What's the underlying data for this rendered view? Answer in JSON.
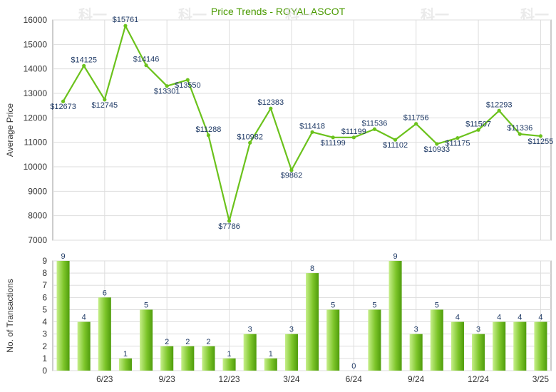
{
  "colors": {
    "title": "#4a9a00",
    "line": "#6bc21c",
    "bar_light": "#c6ef8a",
    "bar_dark": "#4f9c0c",
    "grid": "#dddddd",
    "axis": "#999999"
  },
  "watermark": "科一",
  "chart_data": [
    {
      "type": "line",
      "title": "Price Trends - ROYAL ASCOT",
      "ylabel": "Average Price",
      "ylim": [
        7000,
        16000
      ],
      "yticks": [
        "7000",
        "8000",
        "9000",
        "10000",
        "11000",
        "12000",
        "13000",
        "14000",
        "15000",
        "16000"
      ],
      "grid": true,
      "x": [
        "4/23",
        "5/23",
        "6/23",
        "7/23",
        "8/23",
        "9/23",
        "10/23",
        "11/23",
        "12/23",
        "1/24",
        "2/24",
        "3/24",
        "4/24",
        "5/24",
        "6/24",
        "7/24",
        "8/24",
        "9/24",
        "10/24",
        "11/24",
        "12/24",
        "1/25",
        "2/25",
        "3/25"
      ],
      "values": [
        12673,
        14125,
        12745,
        15761,
        14146,
        13301,
        13550,
        11288,
        7786,
        10982,
        12383,
        9862,
        11418,
        11199,
        11199,
        11536,
        11102,
        11756,
        10933,
        11175,
        11507,
        12293,
        11336,
        11255
      ],
      "labels": [
        "$12673",
        "$14125",
        "$12745",
        "$15761",
        "$14146",
        "$13301",
        "$13550",
        "$11288",
        "$7786",
        "$10982",
        "$12383",
        "$9862",
        "$11418",
        "$11199",
        "$11199",
        "$11536",
        "$11102",
        "$11756",
        "$10933",
        "$11175",
        "$11507",
        "$12293",
        "$11336",
        "$11255"
      ],
      "xtick_labels": [
        "6/23",
        "9/23",
        "12/23",
        "3/24",
        "6/24",
        "9/24",
        "12/24",
        "3/25"
      ]
    },
    {
      "type": "bar",
      "ylabel": "No. of Transactions",
      "ylim": [
        0,
        9
      ],
      "yticks": [
        "0",
        "1",
        "2",
        "3",
        "4",
        "5",
        "6",
        "7",
        "8",
        "9"
      ],
      "grid": true,
      "categories": [
        "4/23",
        "5/23",
        "6/23",
        "7/23",
        "8/23",
        "9/23",
        "10/23",
        "11/23",
        "12/23",
        "1/24",
        "2/24",
        "3/24",
        "4/24",
        "5/24",
        "6/24",
        "7/24",
        "8/24",
        "9/24",
        "10/24",
        "11/24",
        "12/24",
        "1/25",
        "2/25",
        "3/25"
      ],
      "values": [
        9,
        4,
        6,
        1,
        5,
        2,
        2,
        2,
        1,
        3,
        1,
        3,
        8,
        5,
        0,
        5,
        9,
        3,
        5,
        4,
        3,
        4,
        4,
        4
      ],
      "labels": [
        "9",
        "4",
        "6",
        "1",
        "5",
        "2",
        "2",
        "2",
        "1",
        "3",
        "1",
        "3",
        "8",
        "5",
        "0",
        "5",
        "9",
        "3",
        "5",
        "4",
        "3",
        "4",
        "4",
        "4"
      ],
      "xtick_labels": [
        "6/23",
        "9/23",
        "12/23",
        "3/24",
        "6/24",
        "9/24",
        "12/24",
        "3/25"
      ]
    }
  ]
}
